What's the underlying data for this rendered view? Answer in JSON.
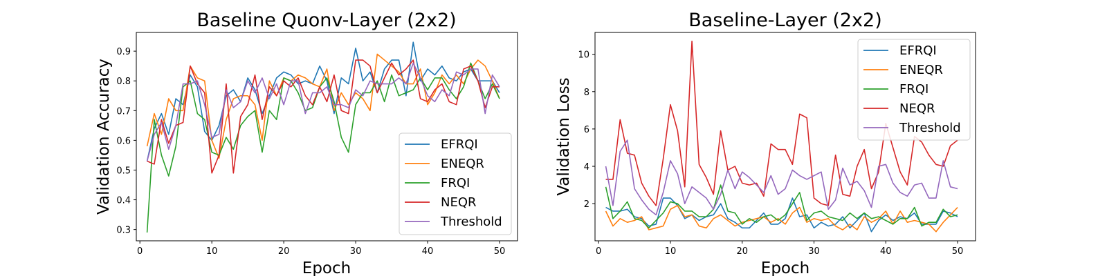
{
  "chart_data": [
    {
      "type": "line",
      "title": "Baseline Quonv-Layer (2x2)",
      "xlabel": "Epoch",
      "ylabel": "Validation Accuracy",
      "xlim": [
        -0.5,
        52.5
      ],
      "ylim": [
        0.262,
        0.963
      ],
      "xticks": [
        0,
        10,
        20,
        30,
        40,
        50
      ],
      "xtick_labels": [
        "0",
        "10",
        "20",
        "30",
        "40",
        "50"
      ],
      "yticks": [
        0.3,
        0.4,
        0.5,
        0.6,
        0.7,
        0.8,
        0.9
      ],
      "ytick_labels": [
        "0.3",
        "0.4",
        "0.5",
        "0.6",
        "0.7",
        "0.8",
        "0.9"
      ],
      "grid": false,
      "legend": "lower right",
      "x": [
        1,
        2,
        3,
        4,
        5,
        6,
        7,
        8,
        9,
        10,
        11,
        12,
        13,
        14,
        15,
        16,
        17,
        18,
        19,
        20,
        21,
        22,
        23,
        24,
        25,
        26,
        27,
        28,
        29,
        30,
        31,
        32,
        33,
        34,
        35,
        36,
        37,
        38,
        39,
        40,
        41,
        42,
        43,
        44,
        45,
        46,
        47,
        48,
        49,
        50
      ],
      "series": [
        {
          "name": "EFRQI",
          "color": "#1f77b4",
          "values": [
            0.53,
            0.64,
            0.69,
            0.62,
            0.74,
            0.72,
            0.82,
            0.78,
            0.63,
            0.6,
            0.65,
            0.75,
            0.77,
            0.73,
            0.81,
            0.77,
            0.69,
            0.75,
            0.81,
            0.83,
            0.82,
            0.79,
            0.8,
            0.79,
            0.85,
            0.8,
            0.69,
            0.81,
            0.79,
            0.91,
            0.8,
            0.83,
            0.76,
            0.84,
            0.87,
            0.87,
            0.75,
            0.93,
            0.8,
            0.84,
            0.82,
            0.85,
            0.81,
            0.8,
            0.83,
            0.84,
            0.8,
            0.8,
            0.8,
            0.76
          ]
        },
        {
          "name": "ENEQR",
          "color": "#ff7f0e",
          "values": [
            0.58,
            0.69,
            0.62,
            0.74,
            0.7,
            0.7,
            0.85,
            0.81,
            0.8,
            0.6,
            0.54,
            0.67,
            0.74,
            0.75,
            0.75,
            0.72,
            0.6,
            0.8,
            0.75,
            0.81,
            0.8,
            0.82,
            0.81,
            0.79,
            0.78,
            0.84,
            0.7,
            0.76,
            0.72,
            0.76,
            0.74,
            0.7,
            0.89,
            0.87,
            0.85,
            0.83,
            0.79,
            0.79,
            0.84,
            0.72,
            0.76,
            0.82,
            0.79,
            0.82,
            0.79,
            0.84,
            0.87,
            0.85,
            0.8,
            0.74
          ]
        },
        {
          "name": "FRQI",
          "color": "#2ca02c",
          "values": [
            0.29,
            0.67,
            0.55,
            0.48,
            0.58,
            0.78,
            0.8,
            0.69,
            0.67,
            0.56,
            0.55,
            0.61,
            0.57,
            0.65,
            0.68,
            0.7,
            0.56,
            0.7,
            0.67,
            0.81,
            0.8,
            0.76,
            0.7,
            0.71,
            0.78,
            0.81,
            0.73,
            0.61,
            0.56,
            0.72,
            0.76,
            0.76,
            0.8,
            0.73,
            0.82,
            0.75,
            0.76,
            0.77,
            0.81,
            0.77,
            0.81,
            0.81,
            0.77,
            0.74,
            0.78,
            0.86,
            0.8,
            0.74,
            0.79,
            0.74
          ]
        },
        {
          "name": "NEQR",
          "color": "#d62728",
          "values": [
            0.53,
            0.52,
            0.67,
            0.59,
            0.65,
            0.66,
            0.85,
            0.79,
            0.76,
            0.49,
            0.55,
            0.79,
            0.49,
            0.68,
            0.72,
            0.82,
            0.67,
            0.78,
            0.75,
            0.8,
            0.78,
            0.81,
            0.75,
            0.72,
            0.78,
            0.73,
            0.82,
            0.7,
            0.69,
            0.87,
            0.87,
            0.85,
            0.76,
            0.81,
            0.86,
            0.82,
            0.84,
            0.87,
            0.74,
            0.73,
            0.77,
            0.79,
            0.73,
            0.72,
            0.84,
            0.85,
            0.8,
            0.71,
            0.78,
            0.78
          ]
        },
        {
          "name": "Threshold",
          "color": "#9467bd",
          "values": [
            0.53,
            0.62,
            0.66,
            0.57,
            0.65,
            0.79,
            0.79,
            0.8,
            0.72,
            0.61,
            0.62,
            0.77,
            0.71,
            0.73,
            0.8,
            0.76,
            0.81,
            0.74,
            0.79,
            0.72,
            0.8,
            0.8,
            0.69,
            0.76,
            0.76,
            0.78,
            0.72,
            0.72,
            0.71,
            0.77,
            0.75,
            0.8,
            0.79,
            0.79,
            0.79,
            0.81,
            0.79,
            0.86,
            0.81,
            0.75,
            0.73,
            0.77,
            0.75,
            0.83,
            0.82,
            0.84,
            0.84,
            0.69,
            0.82,
            0.78
          ]
        }
      ]
    },
    {
      "type": "line",
      "title": "Baseline-Layer (2x2)",
      "xlabel": "Epoch",
      "ylabel": "Validation Loss",
      "xlim": [
        -0.5,
        52.5
      ],
      "ylim": [
        0.01,
        11.17
      ],
      "xticks": [
        0,
        10,
        20,
        30,
        40,
        50
      ],
      "xtick_labels": [
        "0",
        "10",
        "20",
        "30",
        "40",
        "50"
      ],
      "yticks": [
        2,
        4,
        6,
        8,
        10
      ],
      "ytick_labels": [
        "2",
        "4",
        "6",
        "8",
        "10"
      ],
      "grid": false,
      "legend": "upper right",
      "x": [
        1,
        2,
        3,
        4,
        5,
        6,
        7,
        8,
        9,
        10,
        11,
        12,
        13,
        14,
        15,
        16,
        17,
        18,
        19,
        20,
        21,
        22,
        23,
        24,
        25,
        26,
        27,
        28,
        29,
        30,
        31,
        32,
        33,
        34,
        35,
        36,
        37,
        38,
        39,
        40,
        41,
        42,
        43,
        44,
        45,
        46,
        47,
        48,
        49,
        50
      ],
      "series": [
        {
          "name": "EFRQI",
          "color": "#1f77b4",
          "values": [
            1.8,
            1.6,
            1.6,
            1.7,
            1.3,
            1.2,
            0.8,
            0.9,
            2.3,
            2.3,
            1.9,
            1.2,
            1.4,
            1.1,
            1.3,
            1.4,
            2.0,
            1.2,
            1.0,
            0.7,
            0.7,
            1.1,
            1.5,
            0.9,
            0.9,
            1.2,
            2.3,
            1.3,
            1.4,
            0.7,
            1.0,
            0.8,
            0.9,
            1.3,
            0.7,
            1.1,
            1.5,
            0.5,
            1.1,
            1.4,
            1.1,
            1.3,
            1.2,
            1.5,
            0.9,
            0.9,
            0.9,
            1.6,
            1.5,
            1.3
          ]
        },
        {
          "name": "ENEQR",
          "color": "#ff7f0e",
          "values": [
            1.6,
            0.8,
            1.2,
            1.0,
            1.1,
            1.3,
            0.6,
            0.7,
            0.8,
            1.7,
            1.9,
            1.3,
            1.4,
            0.8,
            0.7,
            1.2,
            1.4,
            1.1,
            0.8,
            1.0,
            1.1,
            1.2,
            1.3,
            1.0,
            1.2,
            0.9,
            1.5,
            1.8,
            1.0,
            1.2,
            1.1,
            1.2,
            0.8,
            0.6,
            0.9,
            0.6,
            1.3,
            1.0,
            1.2,
            1.6,
            0.9,
            1.6,
            1.0,
            1.1,
            1.0,
            0.9,
            0.5,
            1.0,
            1.4,
            1.8
          ]
        },
        {
          "name": "FRQI",
          "color": "#2ca02c",
          "values": [
            2.9,
            1.2,
            1.6,
            2.1,
            1.2,
            1.1,
            0.7,
            1.1,
            1.5,
            2.1,
            2.0,
            1.6,
            1.6,
            1.3,
            1.3,
            1.7,
            3.0,
            1.6,
            1.5,
            0.9,
            1.2,
            1.0,
            1.3,
            1.4,
            1.1,
            1.4,
            2.0,
            2.6,
            1.1,
            1.5,
            1.6,
            1.3,
            1.2,
            1.1,
            1.5,
            1.2,
            1.5,
            1.2,
            1.3,
            1.1,
            0.9,
            1.2,
            1.2,
            1.8,
            0.8,
            1.0,
            1.0,
            1.7,
            1.3,
            1.4
          ]
        },
        {
          "name": "NEQR",
          "color": "#d62728",
          "values": [
            3.3,
            3.3,
            6.5,
            4.7,
            4.6,
            3.1,
            2.4,
            1.9,
            4.4,
            7.3,
            5.9,
            2.9,
            10.7,
            4.1,
            3.4,
            2.5,
            5.9,
            3.8,
            4.0,
            3.1,
            3.0,
            3.1,
            2.4,
            5.2,
            4.9,
            4.9,
            4.1,
            6.8,
            6.6,
            2.3,
            2.0,
            1.9,
            4.6,
            2.5,
            2.4,
            4.0,
            4.9,
            2.8,
            3.7,
            6.3,
            5.0,
            3.7,
            3.0,
            5.6,
            5.3,
            4.6,
            4.1,
            4.0,
            5.1,
            5.4
          ]
        },
        {
          "name": "Threshold",
          "color": "#9467bd",
          "values": [
            4.0,
            1.9,
            4.8,
            5.4,
            2.8,
            2.2,
            1.7,
            1.4,
            2.6,
            4.3,
            3.6,
            2.0,
            2.9,
            2.6,
            2.3,
            1.7,
            2.5,
            3.8,
            2.8,
            3.7,
            3.4,
            3.0,
            2.6,
            3.5,
            2.5,
            2.8,
            3.8,
            3.5,
            3.3,
            3.5,
            3.7,
            1.7,
            2.2,
            3.9,
            3.0,
            3.2,
            2.7,
            1.8,
            4.0,
            4.1,
            3.1,
            2.6,
            2.4,
            3.0,
            3.1,
            2.3,
            2.3,
            4.3,
            2.9,
            2.8
          ]
        }
      ]
    }
  ]
}
